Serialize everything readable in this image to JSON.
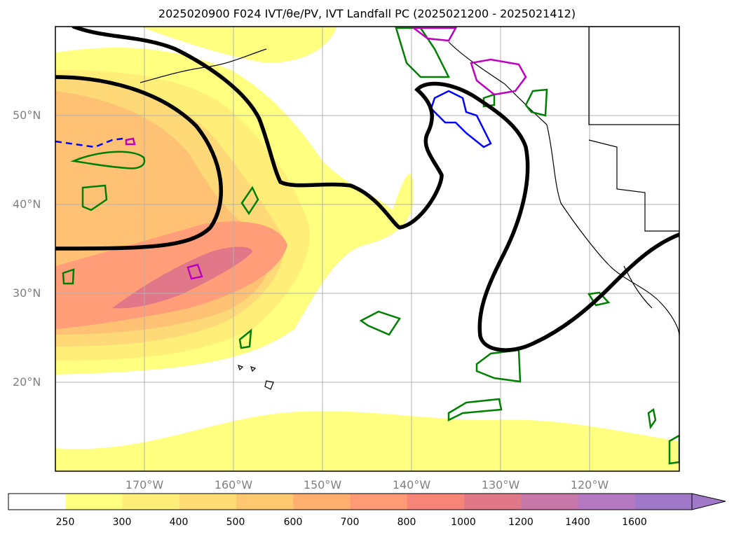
{
  "title": "2025020900 F024 IVT/θe/PV, IVT Landfall PC (2025021200 - 2025021412)",
  "map": {
    "projection": "PlateCarree",
    "extent": {
      "lon_min": -180,
      "lon_max": -110,
      "lat_min": 10,
      "lat_max": 60
    },
    "lat_ticks": [
      {
        "label": "50°N",
        "lat": 50
      },
      {
        "label": "40°N",
        "lat": 40
      },
      {
        "label": "30°N",
        "lat": 30
      },
      {
        "label": "20°N",
        "lat": 20
      }
    ],
    "lon_ticks": [
      {
        "label": "170°W",
        "lon": -170
      },
      {
        "label": "160°W",
        "lon": -160
      },
      {
        "label": "150°W",
        "lon": -150
      },
      {
        "label": "140°W",
        "lon": -140
      },
      {
        "label": "130°W",
        "lon": -130
      },
      {
        "label": "120°W",
        "lon": -120
      }
    ],
    "gridlines": true,
    "contour_colors": {
      "black": "#000000",
      "green": "#008000",
      "blue": "#0000ff",
      "magenta": "#c000c0"
    }
  },
  "colorbar": {
    "levels": [
      "250",
      "300",
      "400",
      "500",
      "600",
      "700",
      "800",
      "1000",
      "1200",
      "1400",
      "1600"
    ],
    "colors": [
      "#ffffff",
      "#ffff80",
      "#ffef7a",
      "#ffdd74",
      "#ffc870",
      "#ffb070",
      "#ff9a74",
      "#f78478",
      "#e07888",
      "#c878a8",
      "#b478c0",
      "#a078c8"
    ],
    "extend": "max"
  }
}
